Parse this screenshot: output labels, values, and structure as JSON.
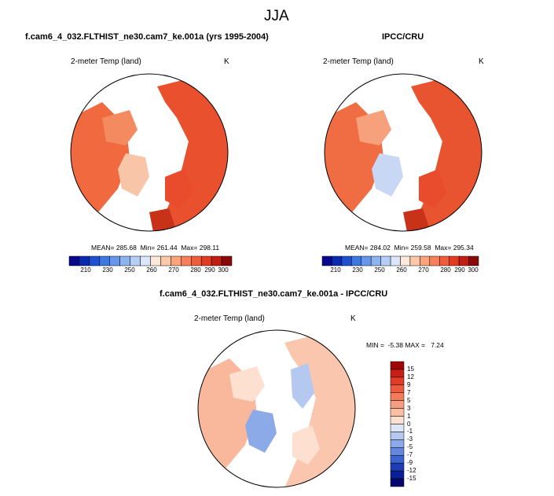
{
  "figure": {
    "title": "JJA",
    "panel1_title": "f.cam6_4_032.FLTHIST_ne30.cam7_ke.001a (yrs 1995-2004)",
    "panel2_title": "IPCC/CRU",
    "panel3_title": "f.cam6_4_032.FLTHIST_ne30.cam7_ke.001a - IPCC/CRU"
  },
  "chart_data": [
    {
      "type": "heatmap",
      "projection": "north-polar-stereographic",
      "variable": "2-meter Temp (land)",
      "units": "K",
      "stats": "MEAN= 285.68  Min= 261.44  Max= 298.11",
      "mean": 285.68,
      "min": 261.44,
      "max": 298.11,
      "colorbar": {
        "orientation": "horizontal",
        "tick_labels": [
          "210",
          "230",
          "250",
          "260",
          "270",
          "280",
          "290",
          "300"
        ],
        "colors": [
          "#08088c",
          "#0a2ab0",
          "#1e50d0",
          "#3c78e0",
          "#6496ea",
          "#8cb4f0",
          "#b4cef6",
          "#dce6fa",
          "#fde8dc",
          "#fbc8a8",
          "#f9a47a",
          "#f5805a",
          "#ef5e3c",
          "#e13c20",
          "#c01e10",
          "#8a0808"
        ]
      }
    },
    {
      "type": "heatmap",
      "projection": "north-polar-stereographic",
      "variable": "2-meter Temp (land)",
      "units": "K",
      "stats": "MEAN= 284.02  Min= 259.58  Max= 295.34",
      "mean": 284.02,
      "min": 259.58,
      "max": 295.34,
      "colorbar": {
        "orientation": "horizontal",
        "tick_labels": [
          "210",
          "230",
          "250",
          "260",
          "270",
          "280",
          "290",
          "300"
        ],
        "colors": [
          "#08088c",
          "#0a2ab0",
          "#1e50d0",
          "#3c78e0",
          "#6496ea",
          "#8cb4f0",
          "#b4cef6",
          "#dce6fa",
          "#fde8dc",
          "#fbc8a8",
          "#f9a47a",
          "#f5805a",
          "#ef5e3c",
          "#e13c20",
          "#c01e10",
          "#8a0808"
        ]
      }
    },
    {
      "type": "heatmap",
      "projection": "north-polar-stereographic",
      "variable": "2-meter Temp (land)",
      "units": "K",
      "stats": "MIN =  -5.38 MAX =   7.24",
      "min": -5.38,
      "max": 7.24,
      "colorbar": {
        "orientation": "vertical",
        "tick_labels": [
          "15",
          "12",
          "9",
          "7",
          "5",
          "3",
          "1",
          "0",
          "-1",
          "-3",
          "-5",
          "-7",
          "-9",
          "-12",
          "-15"
        ],
        "colors": [
          "#a00808",
          "#c81e14",
          "#e03c28",
          "#ee5a40",
          "#f47c5c",
          "#f89e80",
          "#fbc0a4",
          "#fde0d0",
          "#dce6f6",
          "#b4c8f0",
          "#8caae8",
          "#6488dc",
          "#3c64d0",
          "#1e3cb4",
          "#0a1e96",
          "#060670"
        ]
      }
    }
  ]
}
